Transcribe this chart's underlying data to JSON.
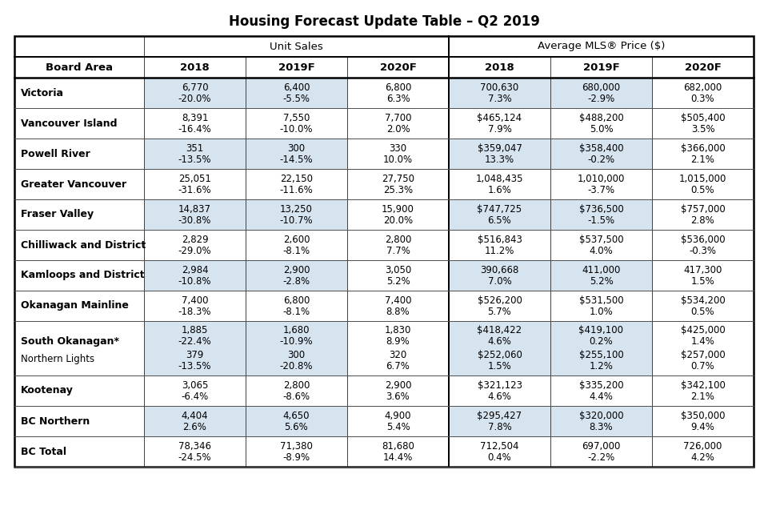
{
  "title": "Housing Forecast Update Table – Q2 2019",
  "col_headers": [
    "Board Area",
    "2018",
    "2019F",
    "2020F",
    "2018",
    "2019F",
    "2020F"
  ],
  "rows": [
    {
      "label": "Victoria",
      "label_bold": true,
      "label_normal": null,
      "data": [
        "6,770\n-20.0%",
        "6,400\n-5.5%",
        "6,800\n6.3%",
        "700,630\n7.3%",
        "680,000\n-2.9%",
        "682,000\n0.3%"
      ],
      "shade": true
    },
    {
      "label": "Vancouver Island",
      "label_bold": true,
      "label_normal": null,
      "data": [
        "8,391\n-16.4%",
        "7,550\n-10.0%",
        "7,700\n2.0%",
        "$465,124\n7.9%",
        "$488,200\n5.0%",
        "$505,400\n3.5%"
      ],
      "shade": false
    },
    {
      "label": "Powell River",
      "label_bold": true,
      "label_normal": null,
      "data": [
        "351\n-13.5%",
        "300\n-14.5%",
        "330\n10.0%",
        "$359,047\n13.3%",
        "$358,400\n-0.2%",
        "$366,000\n2.1%"
      ],
      "shade": true
    },
    {
      "label": "Greater Vancouver",
      "label_bold": true,
      "label_normal": null,
      "data": [
        "25,051\n-31.6%",
        "22,150\n-11.6%",
        "27,750\n25.3%",
        "1,048,435\n1.6%",
        "1,010,000\n-3.7%",
        "1,015,000\n0.5%"
      ],
      "shade": false
    },
    {
      "label": "Fraser Valley",
      "label_bold": true,
      "label_normal": null,
      "data": [
        "14,837\n-30.8%",
        "13,250\n-10.7%",
        "15,900\n20.0%",
        "$747,725\n6.5%",
        "$736,500\n-1.5%",
        "$757,000\n2.8%"
      ],
      "shade": true
    },
    {
      "label": "Chilliwack and District",
      "label_bold": true,
      "label_normal": null,
      "data": [
        "2,829\n-29.0%",
        "2,600\n-8.1%",
        "2,800\n7.7%",
        "$516,843\n11.2%",
        "$537,500\n4.0%",
        "$536,000\n-0.3%"
      ],
      "shade": false
    },
    {
      "label": "Kamloops and District",
      "label_bold": true,
      "label_normal": null,
      "data": [
        "2,984\n-10.8%",
        "2,900\n-2.8%",
        "3,050\n5.2%",
        "390,668\n7.0%",
        "411,000\n5.2%",
        "417,300\n1.5%"
      ],
      "shade": true
    },
    {
      "label": "Okanagan Mainline",
      "label_bold": true,
      "label_normal": null,
      "data": [
        "7,400\n-18.3%",
        "6,800\n-8.1%",
        "7,400\n8.8%",
        "$526,200\n5.7%",
        "$531,500\n1.0%",
        "$534,200\n0.5%"
      ],
      "shade": false
    },
    {
      "label": "South Okanagan*",
      "label_bold": true,
      "label_normal": "Northern Lights",
      "data": [
        "1,885\n-22.4%\n379\n-13.5%",
        "1,680\n-10.9%\n300\n-20.8%",
        "1,830\n8.9%\n320\n6.7%",
        "$418,422\n4.6%\n$252,060\n1.5%",
        "$419,100\n0.2%\n$255,100\n1.2%",
        "$425,000\n1.4%\n$257,000\n0.7%"
      ],
      "shade": true
    },
    {
      "label": "Kootenay",
      "label_bold": true,
      "label_normal": null,
      "data": [
        "3,065\n-6.4%",
        "2,800\n-8.6%",
        "2,900\n3.6%",
        "$321,123\n4.6%",
        "$335,200\n4.4%",
        "$342,100\n2.1%"
      ],
      "shade": false
    },
    {
      "label": "BC Northern",
      "label_bold": true,
      "label_normal": null,
      "data": [
        "4,404\n2.6%",
        "4,650\n5.6%",
        "4,900\n5.4%",
        "$295,427\n7.8%",
        "$320,000\n8.3%",
        "$350,000\n9.4%"
      ],
      "shade": true
    },
    {
      "label": "BC Total",
      "label_bold": true,
      "label_normal": null,
      "data": [
        "78,346\n-24.5%",
        "71,380\n-8.9%",
        "81,680\n14.4%",
        "712,504\n0.4%",
        "697,000\n-2.2%",
        "726,000\n4.2%"
      ],
      "shade": false
    }
  ],
  "shade_color": "#d6e4f0",
  "fig_width": 9.6,
  "fig_height": 6.42,
  "dpi": 100,
  "title_fontsize": 12,
  "header_fontsize": 9,
  "data_fontsize": 8.5,
  "label_fontsize": 9
}
